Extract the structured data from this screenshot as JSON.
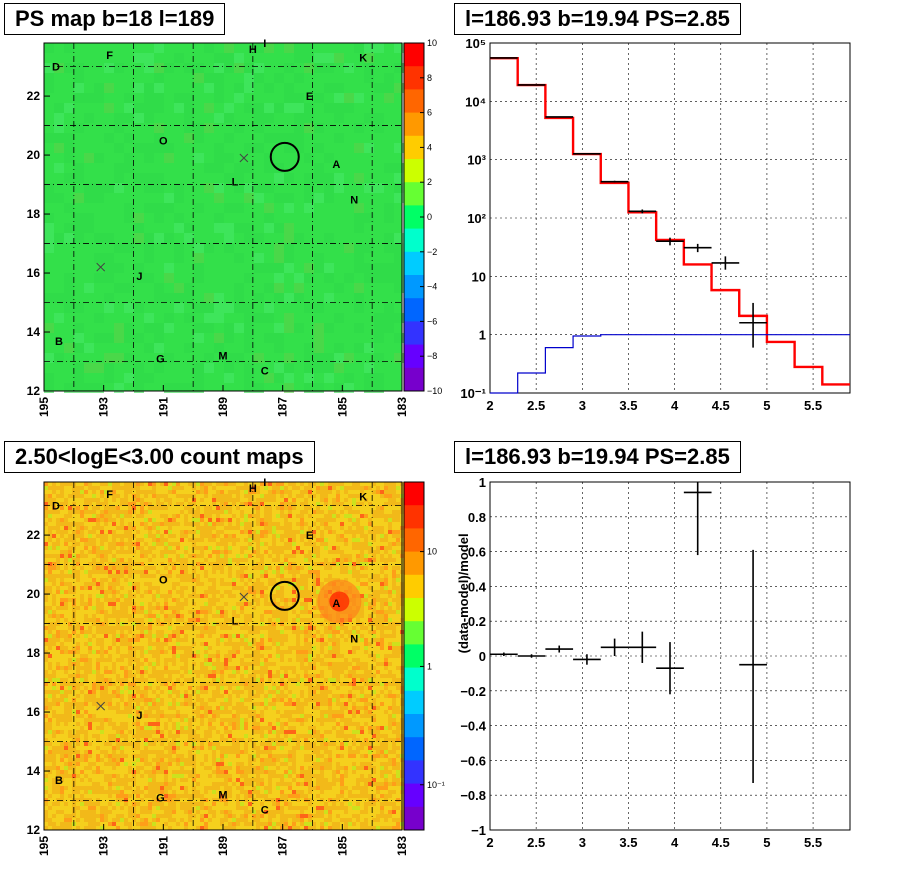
{
  "titles": {
    "map1": "PS map b=18 l=189",
    "spectrum": "l=186.93 b=19.94 PS=2.85",
    "map2": "2.50<logE<3.00 count maps",
    "residual": "l=186.93 b=19.94 PS=2.85"
  },
  "colors": {
    "model_line": "#ff0000",
    "bottom_line": "#0000cc",
    "data_marker": "#000000",
    "map1_bg": "#33e04a",
    "map2_bg": "#f2c21c"
  },
  "maps": {
    "x_ticks": [
      "195",
      "193",
      "191",
      "189",
      "187",
      "185",
      "183"
    ],
    "y_ticks": [
      "12",
      "14",
      "16",
      "18",
      "20",
      "22"
    ],
    "x_range": [
      195,
      183
    ],
    "y_range": [
      12,
      23.8
    ],
    "source_labels": [
      {
        "text": "D",
        "l": 194.6,
        "b": 23.0
      },
      {
        "text": "F",
        "l": 192.8,
        "b": 23.4
      },
      {
        "text": "H",
        "l": 188.0,
        "b": 23.6
      },
      {
        "text": "I",
        "l": 187.6,
        "b": 23.8
      },
      {
        "text": "K",
        "l": 184.3,
        "b": 23.3
      },
      {
        "text": "E",
        "l": 186.1,
        "b": 22.0
      },
      {
        "text": "O",
        "l": 191.0,
        "b": 20.5
      },
      {
        "text": "A",
        "l": 185.2,
        "b": 19.7
      },
      {
        "text": "L",
        "l": 188.6,
        "b": 19.1
      },
      {
        "text": "N",
        "l": 184.6,
        "b": 18.5
      },
      {
        "text": "J",
        "l": 191.8,
        "b": 15.9
      },
      {
        "text": "B",
        "l": 194.5,
        "b": 13.7
      },
      {
        "text": "G",
        "l": 191.1,
        "b": 13.1
      },
      {
        "text": "M",
        "l": 189.0,
        "b": 13.2
      },
      {
        "text": "C",
        "l": 187.6,
        "b": 12.7
      }
    ],
    "target_circle": {
      "l": 186.93,
      "b": 19.94
    },
    "crosses": [
      {
        "l": 188.3,
        "b": 19.9
      },
      {
        "l": 193.1,
        "b": 16.2
      }
    ]
  },
  "colorbar1": {
    "ticks": [
      "10",
      "8",
      "6",
      "4",
      "2",
      "0",
      "−2",
      "−4",
      "−6",
      "−8",
      "−10"
    ],
    "colors": [
      "#ff0000",
      "#ff3300",
      "#ff6600",
      "#ff9900",
      "#ffcc00",
      "#ccff00",
      "#66ff33",
      "#00ff66",
      "#00ffcc",
      "#00ccff",
      "#0099ff",
      "#0066ff",
      "#3333ff",
      "#6600ff",
      "#7700cc"
    ]
  },
  "colorbar2": {
    "ticks": [
      "10",
      "1",
      "10⁻¹"
    ],
    "colors": [
      "#ff0000",
      "#ff3300",
      "#ff6600",
      "#ff9900",
      "#ffcc00",
      "#ccff00",
      "#66ff33",
      "#00ff66",
      "#00ffcc",
      "#00ccff",
      "#0099ff",
      "#0066ff",
      "#3333ff",
      "#6600ff",
      "#7700cc"
    ]
  },
  "chart_data": [
    {
      "type": "line",
      "title": "l=186.93 b=19.94 PS=2.85",
      "xlabel": "",
      "ylabel": "",
      "xlim": [
        2,
        5.9
      ],
      "ylim": [
        0.1,
        100000
      ],
      "y_scale": "log",
      "x_ticks": [
        "2",
        "2.5",
        "3",
        "3.5",
        "4",
        "4.5",
        "5",
        "5.5"
      ],
      "y_ticks": [
        "10⁻¹",
        "1",
        "10",
        "10²",
        "10³",
        "10⁴",
        "10⁵"
      ],
      "grid": true,
      "step_series": [
        {
          "color": "#ff0000",
          "edges": [
            2,
            2.3,
            2.6,
            2.9,
            3.2,
            3.5,
            3.8,
            4.1,
            4.4,
            4.7,
            5.0,
            5.3,
            5.6,
            5.9
          ],
          "values": [
            55000,
            19000,
            5200,
            1250,
            400,
            125,
            42,
            16,
            5.8,
            2.1,
            0.75,
            0.28,
            0.14
          ]
        },
        {
          "color": "#0000cc",
          "edges": [
            2,
            2.3,
            2.6,
            2.9,
            3.2,
            3.5,
            3.8,
            4.1,
            4.4,
            4.7,
            5.0,
            5.3,
            5.6,
            5.9
          ],
          "values": [
            0.1,
            0.22,
            0.6,
            0.95,
            1.0,
            1.0,
            1.0,
            1.0,
            1.0,
            1.0,
            1.0,
            1.0,
            1.0
          ]
        }
      ],
      "points": [
        {
          "x": 2.15,
          "y": 55500,
          "xerr": 0.15,
          "ylo": 55000,
          "yhi": 56000
        },
        {
          "x": 2.45,
          "y": 19100,
          "xerr": 0.15,
          "ylo": 18900,
          "yhi": 19300
        },
        {
          "x": 2.75,
          "y": 5400,
          "xerr": 0.15,
          "ylo": 5300,
          "yhi": 5500
        },
        {
          "x": 3.05,
          "y": 1260,
          "xerr": 0.15,
          "ylo": 1230,
          "yhi": 1290
        },
        {
          "x": 3.35,
          "y": 420,
          "xerr": 0.15,
          "ylo": 405,
          "yhi": 435
        },
        {
          "x": 3.65,
          "y": 130,
          "xerr": 0.15,
          "ylo": 120,
          "yhi": 140
        },
        {
          "x": 3.95,
          "y": 40,
          "xerr": 0.15,
          "ylo": 34,
          "yhi": 46
        },
        {
          "x": 4.25,
          "y": 31,
          "xerr": 0.15,
          "ylo": 26,
          "yhi": 36
        },
        {
          "x": 4.55,
          "y": 17,
          "xerr": 0.15,
          "ylo": 13,
          "yhi": 22
        },
        {
          "x": 4.85,
          "y": 1.6,
          "xerr": 0.15,
          "ylo": 0.6,
          "yhi": 3.5
        }
      ]
    },
    {
      "type": "scatter",
      "title": "l=186.93 b=19.94 PS=2.85",
      "xlabel": "",
      "ylabel": "(data-model)/model",
      "xlim": [
        2,
        5.9
      ],
      "ylim": [
        -1,
        1
      ],
      "x_ticks": [
        "2",
        "2.5",
        "3",
        "3.5",
        "4",
        "4.5",
        "5",
        "5.5"
      ],
      "y_ticks": [
        "−1",
        "−0.8",
        "−0.6",
        "−0.4",
        "−0.2",
        "0",
        "0.2",
        "0.4",
        "0.6",
        "0.8",
        "1"
      ],
      "grid": true,
      "points": [
        {
          "x": 2.15,
          "y": 0.01,
          "xerr": 0.15,
          "ylo": 0.0,
          "yhi": 0.02
        },
        {
          "x": 2.45,
          "y": 0.0,
          "xerr": 0.15,
          "ylo": -0.01,
          "yhi": 0.01
        },
        {
          "x": 2.75,
          "y": 0.04,
          "xerr": 0.15,
          "ylo": 0.02,
          "yhi": 0.06
        },
        {
          "x": 3.05,
          "y": -0.02,
          "xerr": 0.15,
          "ylo": -0.05,
          "yhi": 0.01
        },
        {
          "x": 3.35,
          "y": 0.05,
          "xerr": 0.15,
          "ylo": 0.0,
          "yhi": 0.1
        },
        {
          "x": 3.65,
          "y": 0.05,
          "xerr": 0.15,
          "ylo": -0.04,
          "yhi": 0.14
        },
        {
          "x": 3.95,
          "y": -0.07,
          "xerr": 0.15,
          "ylo": -0.22,
          "yhi": 0.08
        },
        {
          "x": 4.25,
          "y": 0.94,
          "xerr": 0.15,
          "ylo": 0.58,
          "yhi": 1.0
        },
        {
          "x": 4.85,
          "y": -0.05,
          "xerr": 0.15,
          "ylo": -0.73,
          "yhi": 0.61
        }
      ]
    }
  ]
}
